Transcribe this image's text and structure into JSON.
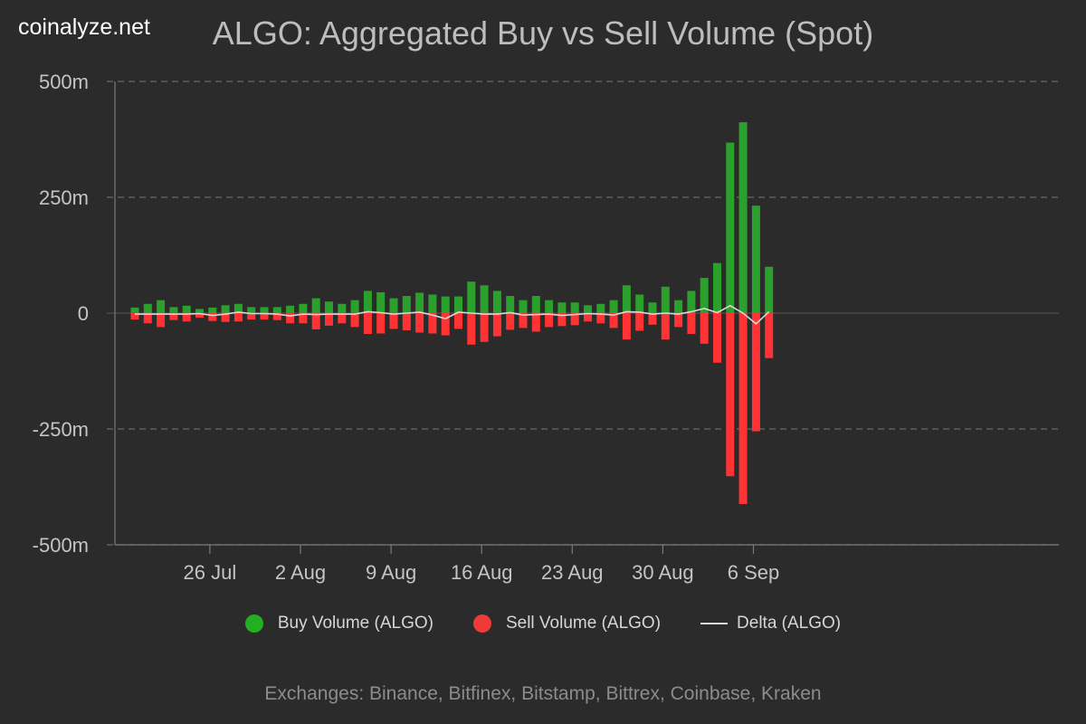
{
  "brand": "coinalyze.net",
  "chart_data": {
    "type": "bar",
    "title": "ALGO: Aggregated Buy vs Sell Volume (Spot)",
    "ylim": [
      -500,
      500
    ],
    "y_ticks": [
      500,
      250,
      0,
      -250,
      -500
    ],
    "y_tick_labels": [
      "500m",
      "250m",
      "0",
      "-250m",
      "-500m"
    ],
    "x_ticks": [
      {
        "label": "26 Jul",
        "index": 3
      },
      {
        "label": "2 Aug",
        "index": 10
      },
      {
        "label": "9 Aug",
        "index": 17
      },
      {
        "label": "16 Aug",
        "index": 24
      },
      {
        "label": "23 Aug",
        "index": 31
      },
      {
        "label": "30 Aug",
        "index": 38
      },
      {
        "label": "6 Sep",
        "index": 45
      }
    ],
    "grid": true,
    "legend_position": "bottom",
    "series": [
      {
        "name": "Buy Volume (ALGO)",
        "color": "#2ca02c",
        "values": [
          12,
          20,
          28,
          13,
          16,
          9,
          12,
          17,
          20,
          13,
          13,
          13,
          16,
          20,
          32,
          25,
          20,
          28,
          48,
          45,
          32,
          37,
          44,
          40,
          36,
          36,
          68,
          60,
          48,
          37,
          28,
          37,
          28,
          23,
          23,
          17,
          20,
          28,
          60,
          40,
          23,
          57,
          28,
          48,
          76,
          108,
          368,
          412,
          232,
          100
        ]
      },
      {
        "name": "Sell Volume (ALGO)",
        "color": "#ff3333",
        "values": [
          -14,
          -22,
          -30,
          -15,
          -18,
          -10,
          -17,
          -19,
          -18,
          -14,
          -14,
          -15,
          -22,
          -22,
          -35,
          -27,
          -22,
          -30,
          -45,
          -44,
          -34,
          -37,
          -42,
          -44,
          -48,
          -34,
          -68,
          -62,
          -50,
          -36,
          -32,
          -40,
          -30,
          -28,
          -26,
          -18,
          -22,
          -32,
          -57,
          -38,
          -25,
          -57,
          -30,
          -45,
          -66,
          -107,
          -352,
          -412,
          -255,
          -97
        ]
      },
      {
        "name": "Delta (ALGO)",
        "color": "#d9d9d9",
        "values": [
          -2,
          -2,
          -2,
          -2,
          -2,
          -1,
          -5,
          -2,
          2,
          -1,
          -1,
          -2,
          -6,
          -2,
          -3,
          -2,
          -2,
          -2,
          3,
          1,
          -2,
          0,
          2,
          -4,
          -12,
          2,
          0,
          -2,
          -2,
          1,
          -4,
          -3,
          -2,
          -5,
          -3,
          -1,
          -2,
          -4,
          3,
          2,
          -2,
          0,
          -2,
          3,
          10,
          1,
          16,
          0,
          -23,
          3
        ]
      }
    ]
  },
  "legend": {
    "buy": "Buy Volume (ALGO)",
    "sell": "Sell Volume (ALGO)",
    "delta": "Delta (ALGO)"
  },
  "colors": {
    "background": "#2b2b2b",
    "buy": "#2ca02c",
    "buy_legend": "#22b022",
    "sell": "#ff3333",
    "sell_legend": "#f03a3a",
    "delta": "#d9d9d9",
    "grid": "#6a6a6a"
  },
  "footer": "Exchanges: Binance, Bitfinex, Bitstamp, Bittrex, Coinbase, Kraken"
}
